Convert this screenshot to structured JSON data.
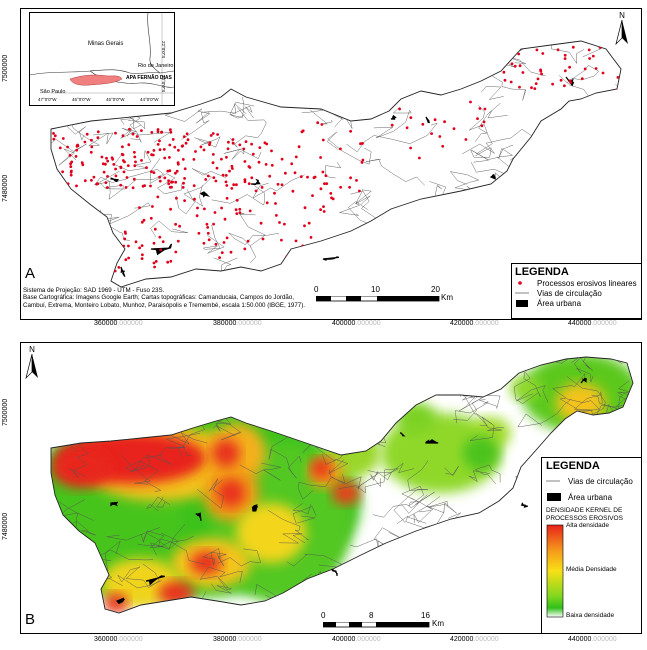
{
  "panel_a": {
    "letter": "A",
    "inset": {
      "states": [
        "Minas Gerais",
        "Rio de Janeiro",
        "São Paulo"
      ],
      "apa_label": "APA FERNÃO DIAS",
      "lon_ticks": [
        "47°0'0\"W",
        "46°0'0\"W",
        "45°0'0\"W",
        "44°0'0\"W"
      ],
      "lat_ticks": [
        "22°0'0\"S",
        "23°0'0\"S"
      ]
    },
    "north_label": "N",
    "legend": {
      "title": "LEGENDA",
      "items": [
        "Processos erosivos lineares",
        "Vias de circulação",
        "Área urbana"
      ]
    },
    "credits": {
      "projection": "Sistema de Projeção: SAD 1969 - UTM - Fuso 23S.",
      "base": "Base Cartográfica:  Imagens Google Earth; Cartas topográficas: Camanducaia, Campos do Jordão, Cambuí, Extrema, Monteiro Lobato, Munhoz, Paraisópolis e Tremembé, escala 1:50.000 (IBGE, 1977)."
    },
    "scale": {
      "ticks": [
        "0",
        "10",
        "20"
      ],
      "unit": "Km"
    },
    "y_ticks": [
      "7500000",
      "7480000"
    ],
    "x_ticks": [
      "360000",
      "380000",
      "400000",
      "420000",
      "440000"
    ],
    "x_suffix": ".000000"
  },
  "panel_b": {
    "letter": "B",
    "north_label": "N",
    "legend": {
      "title": "LEGENDA",
      "items": [
        "Vias de circulação",
        "Área urbana"
      ],
      "ramp_title": "DENSIDADE KERNEL DE PROCESSOS  EROSIVOS",
      "ramp_labels": [
        "Alta densidade",
        "Média Densidade",
        "Baixa densidade"
      ]
    },
    "scale": {
      "ticks": [
        "0",
        "8",
        "16"
      ],
      "unit": "Km"
    },
    "y_ticks": [
      "7500000",
      "7480000"
    ],
    "x_ticks": [
      "360000",
      "380000",
      "400000",
      "420000",
      "440000"
    ],
    "x_suffix": ".000000"
  },
  "colors": {
    "points": "#e0001b",
    "roads": "#555555",
    "urban": "#000000",
    "high": "#e8231b",
    "mid": "#f7e016",
    "low": "#2fbf1a",
    "none": "#ffffff",
    "apa": "#f08080"
  }
}
